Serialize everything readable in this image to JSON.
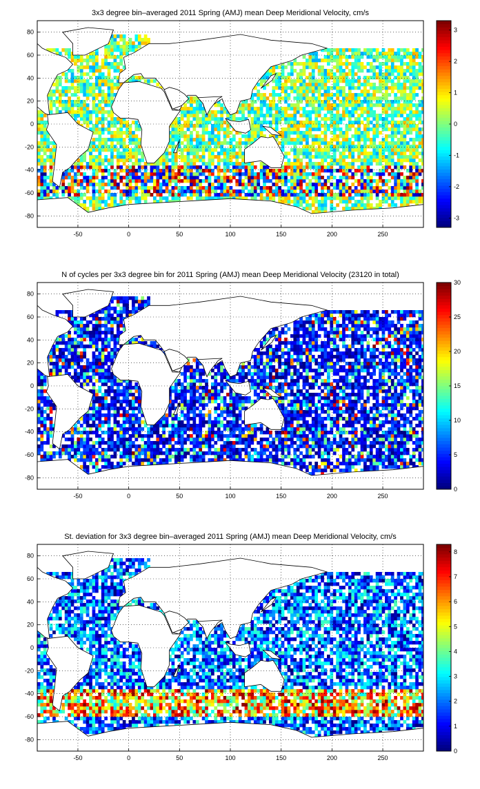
{
  "chart_data": [
    {
      "type": "heatmap",
      "title": "3x3 degree bin–averaged 2011 Spring (AMJ) mean Deep Meridional Velocity, cm/s",
      "xlim": [
        -90,
        290
      ],
      "ylim": [
        -90,
        90
      ],
      "xticks": [
        -50,
        0,
        50,
        100,
        150,
        200,
        250
      ],
      "yticks": [
        80,
        60,
        40,
        20,
        0,
        -20,
        -40,
        -60,
        -80
      ],
      "colorbar": {
        "min": -3.3,
        "max": 3.3,
        "ticks": [
          3,
          2,
          1,
          0,
          -1,
          -2,
          -3
        ]
      },
      "colormap": "jet",
      "grid": true,
      "bin_size_deg": 3,
      "field": "mean"
    },
    {
      "type": "heatmap",
      "title": "N of cycles per 3x3 degree bin for 2011 Spring (AMJ) mean Deep Meridional Velocity (23120 in total)",
      "xlim": [
        -90,
        290
      ],
      "ylim": [
        -90,
        90
      ],
      "xticks": [
        -50,
        0,
        50,
        100,
        150,
        200,
        250
      ],
      "yticks": [
        80,
        60,
        40,
        20,
        0,
        -20,
        -40,
        -60,
        -80
      ],
      "colorbar": {
        "min": 0,
        "max": 30,
        "ticks": [
          30,
          25,
          20,
          15,
          10,
          5,
          0
        ]
      },
      "colormap": "jet",
      "grid": true,
      "bin_size_deg": 3,
      "field": "count"
    },
    {
      "type": "heatmap",
      "title": "St. deviation for 3x3 degree bin–averaged 2011 Spring (AMJ) mean Deep Meridional Velocity, cm/s",
      "xlim": [
        -90,
        290
      ],
      "ylim": [
        -90,
        90
      ],
      "xticks": [
        -50,
        0,
        50,
        100,
        150,
        200,
        250
      ],
      "yticks": [
        80,
        60,
        40,
        20,
        0,
        -20,
        -40,
        -60,
        -80
      ],
      "colorbar": {
        "min": 0,
        "max": 8.3,
        "ticks": [
          8,
          7,
          6,
          5,
          4,
          3,
          2,
          1,
          0
        ]
      },
      "colormap": "jet",
      "grid": true,
      "bin_size_deg": 3,
      "field": "std"
    }
  ]
}
